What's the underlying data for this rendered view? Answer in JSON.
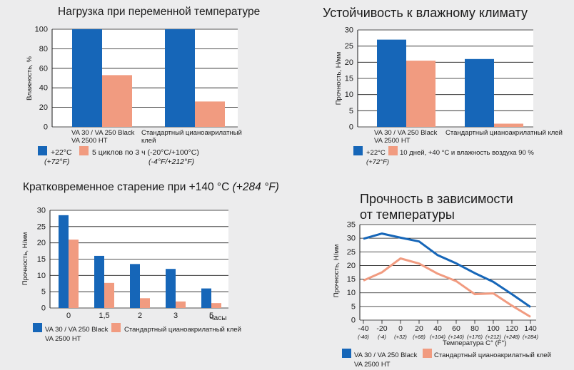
{
  "colors": {
    "blue": "#1666b8",
    "salmon": "#f19b80",
    "grid": "#1a1a1a",
    "plot_bg": "#ffffff"
  },
  "chart_data": [
    {
      "id": "thermal",
      "type": "bar",
      "title": "Нагрузка при переменной температуре",
      "ylabel": "Влажность, %",
      "ylim": [
        0,
        100
      ],
      "yticks": [
        0,
        20,
        40,
        60,
        80,
        100
      ],
      "categories": [
        [
          "VA 30 / VA 250 Black",
          "VA 2500 HT"
        ],
        [
          "Стандартный цианоакрилатный",
          "клей"
        ]
      ],
      "series": [
        {
          "name": "+22°C",
          "name_sub": "(+72°F)",
          "values": [
            100,
            100
          ]
        },
        {
          "name": "5 циклов по 3 ч (-20°C/+100°C)",
          "name_sub": "(-4°F/+212°F)",
          "values": [
            53,
            26
          ]
        }
      ],
      "grid": true,
      "legend": "bottom"
    },
    {
      "id": "humidity",
      "type": "bar",
      "title": "Устойчивость к влажному климату",
      "ylabel": "Прочность, Н/мм",
      "ylim": [
        0,
        30
      ],
      "yticks": [
        0,
        5,
        10,
        15,
        20,
        25,
        30
      ],
      "categories": [
        [
          "VA 30 / VA 250 Black",
          "VA 2500 HT"
        ],
        [
          "Стандартный цианоакрилатный клей"
        ]
      ],
      "series": [
        {
          "name": "+22°C",
          "name_sub": "(+72°F)",
          "values": [
            27,
            21
          ]
        },
        {
          "name": "10 дней, +40 °C и влажность воздуха 90 %",
          "name_sub": "",
          "values": [
            20.5,
            1
          ]
        }
      ],
      "grid": true,
      "legend": "bottom"
    },
    {
      "id": "aging",
      "type": "bar",
      "title_main": "Кратковременное старение при +140 °C",
      "title_alt": "(+284 °F)",
      "ylabel": "Прочность, Н/мм",
      "xlabel": "Часы",
      "ylim": [
        0,
        30
      ],
      "yticks": [
        0,
        5,
        10,
        15,
        20,
        25,
        30
      ],
      "categories": [
        "0",
        "1,5",
        "2",
        "3",
        "5"
      ],
      "series": [
        {
          "name": "VA 30 / VA 250 Black",
          "name_sub": "VA 2500 HT",
          "values": [
            28.5,
            16,
            13.5,
            12,
            6
          ]
        },
        {
          "name": "Стандартный цианоакрилатный клей",
          "name_sub": "",
          "values": [
            21,
            7.7,
            3,
            2,
            1.5
          ]
        }
      ],
      "grid": true,
      "legend": "bottom"
    },
    {
      "id": "temperature",
      "type": "line",
      "title_lines": [
        "Прочность в зависимости",
        "от температуры"
      ],
      "ylabel": "Прочность, Н/мм",
      "xlabel": "Температура C° (F°)",
      "ylim": [
        0,
        35
      ],
      "yticks": [
        0,
        5,
        10,
        15,
        20,
        25,
        30,
        35
      ],
      "xlim": [
        -40,
        140
      ],
      "x_ticks": [
        -40,
        -20,
        0,
        20,
        40,
        60,
        80,
        100,
        120,
        140
      ],
      "x_tick_labels": [
        "-40",
        "-20",
        "0",
        "20",
        "40",
        "60",
        "80",
        "100",
        "120",
        "140"
      ],
      "x_tick_sub": [
        "(-40)",
        "(-4)",
        "(+32)",
        "(+68)",
        "(+104)",
        "(+140)",
        "(+176)",
        "(+212)",
        "(+248)",
        "(+284)"
      ],
      "series": [
        {
          "name": "VA 30 / VA 250 Black",
          "name_sub": "VA 2500 HT",
          "x": [
            -40,
            -20,
            0,
            20,
            40,
            60,
            80,
            100,
            120,
            140
          ],
          "y": [
            29.8,
            31.7,
            30.2,
            28.8,
            23.8,
            20.8,
            17.2,
            14,
            9.5,
            4.8
          ]
        },
        {
          "name": "Стандартный цианоакрилатный клей",
          "name_sub": "",
          "x": [
            -40,
            -20,
            0,
            20,
            40,
            60,
            80,
            100,
            120,
            140
          ],
          "y": [
            14.5,
            17.5,
            22.6,
            20.7,
            17,
            14.3,
            9.5,
            9.8,
            5.3,
            1.2
          ]
        }
      ],
      "grid": true,
      "legend": "bottom"
    }
  ]
}
